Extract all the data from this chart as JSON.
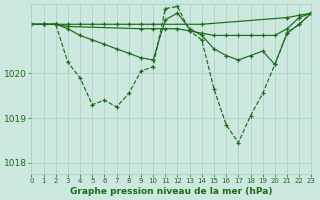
{
  "bg_color": "#cce8df",
  "line_color": "#1a6b1a",
  "grid_color": "#a8cfc0",
  "xlabel": "Graphe pression niveau de la mer (hPa)",
  "ylim": [
    1017.75,
    1021.55
  ],
  "xlim": [
    0,
    23
  ],
  "yticks": [
    1018,
    1019,
    1020
  ],
  "xtick_labels": [
    "0",
    "1",
    "2",
    "3",
    "4",
    "5",
    "6",
    "7",
    "8",
    "9",
    "10",
    "11",
    "12",
    "13",
    "14",
    "15",
    "16",
    "17",
    "18",
    "19",
    "20",
    "21",
    "22",
    "23"
  ],
  "series": [
    {
      "x": [
        0,
        1,
        2,
        3,
        4,
        5,
        6,
        7,
        8,
        9,
        10,
        14,
        21,
        22,
        23
      ],
      "y": [
        1021.1,
        1021.1,
        1021.1,
        1021.1,
        1021.1,
        1021.1,
        1021.1,
        1021.1,
        1021.1,
        1021.1,
        1021.1,
        1021.1,
        1021.25,
        1021.3,
        1021.35
      ],
      "linestyle": "-"
    },
    {
      "x": [
        0,
        1,
        2,
        3,
        9,
        10,
        11,
        12,
        13,
        14,
        15,
        16,
        17,
        18,
        19,
        20,
        21,
        22,
        23
      ],
      "y": [
        1021.1,
        1021.1,
        1021.1,
        1021.05,
        1021.0,
        1021.0,
        1021.0,
        1021.0,
        1020.95,
        1020.9,
        1020.85,
        1020.85,
        1020.85,
        1020.85,
        1020.85,
        1020.85,
        1021.0,
        1021.25,
        1021.35
      ],
      "linestyle": "-"
    },
    {
      "x": [
        0,
        1,
        2,
        3,
        4,
        5,
        6,
        7,
        8,
        9,
        10,
        11,
        12,
        13,
        14,
        15,
        16,
        17,
        18,
        19,
        20,
        21,
        22,
        23
      ],
      "y": [
        1021.1,
        1021.1,
        1021.1,
        1020.25,
        1019.9,
        1019.3,
        1019.4,
        1019.25,
        1019.55,
        1020.05,
        1020.15,
        1021.45,
        1021.5,
        1020.95,
        1020.75,
        1019.65,
        1018.85,
        1018.45,
        1019.05,
        1019.55,
        1020.2,
        1020.9,
        1021.1,
        1021.35
      ],
      "linestyle": "--"
    },
    {
      "x": [
        0,
        1,
        2,
        3,
        4,
        5,
        6,
        7,
        8,
        9,
        10,
        11,
        12,
        13,
        14,
        15,
        16,
        17,
        18,
        19,
        20,
        21,
        22,
        23
      ],
      "y": [
        1021.1,
        1021.1,
        1021.1,
        1021.0,
        1020.85,
        1020.75,
        1020.65,
        1020.55,
        1020.45,
        1020.35,
        1020.3,
        1021.2,
        1021.35,
        1021.0,
        1020.85,
        1020.55,
        1020.4,
        1020.3,
        1020.4,
        1020.5,
        1020.2,
        1020.9,
        1021.1,
        1021.35
      ],
      "linestyle": "-"
    }
  ]
}
